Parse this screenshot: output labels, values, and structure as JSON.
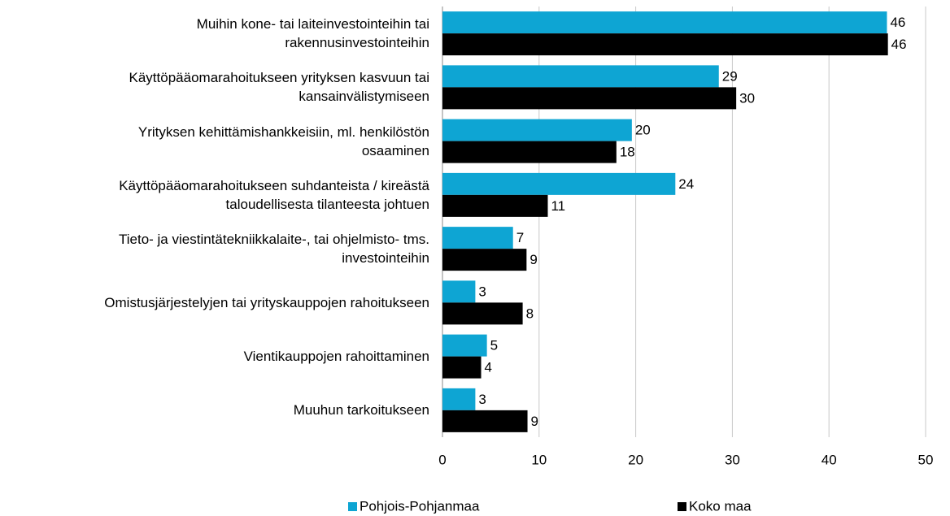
{
  "chart_data": {
    "type": "barh",
    "categories": [
      "Muihin kone- tai laiteinvestointeihin tai\nrakennusinvestointeihin",
      "Käyttöpääomarahoitukseen yrityksen kasvuun tai\nkansainvälistymiseen",
      "Yrityksen kehittämishankkeisiin, ml. henkilöstön\nosaaminen",
      "Käyttöpääomarahoitukseen suhdanteista / kireästä\ntaloudellisesta tilanteesta johtuen",
      "Tieto- ja viestintätekniikkalaite-, tai ohjelmisto- tms.\ninvestointeihin",
      "Omistusjärjestelyjen tai yrityskauppojen rahoitukseen",
      "Vientikauppojen rahoittaminen",
      "Muuhun tarkoitukseen"
    ],
    "series": [
      {
        "name": "Pohjois-Pohjanmaa",
        "color": "#0ea5d3",
        "values": [
          46.0,
          28.6,
          19.6,
          24.1,
          7.3,
          3.4,
          4.6,
          3.4
        ],
        "value_labels": [
          "46",
          "29",
          "20",
          "24",
          "7",
          "3",
          "5",
          "3"
        ]
      },
      {
        "name": "Koko maa",
        "color": "#000000",
        "values": [
          46.1,
          30.4,
          18.0,
          10.9,
          8.7,
          8.3,
          4.0,
          8.8
        ],
        "value_labels": [
          "46",
          "30",
          "18",
          "11",
          "9",
          "8",
          "4",
          "9"
        ]
      }
    ],
    "xlim": [
      0,
      50
    ],
    "xticks": [
      0,
      10,
      20,
      30,
      40,
      50
    ],
    "grid": true,
    "legend": "bottom"
  }
}
